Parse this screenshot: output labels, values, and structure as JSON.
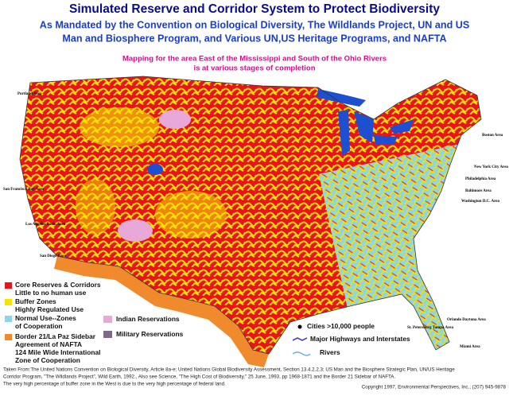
{
  "header": {
    "title": "Simulated Reserve and Corridor System to Protect Biodiversity",
    "subtitle": [
      "As Mandated by the Convention on Biological Diversity, The Wildlands Project, UN and US",
      "Man and Biosphere Program, and Various UN,US Heritage Programs, and NAFTA"
    ],
    "note": [
      "Mapping for the area East of the Mississippi and South of the Ohio Rivers",
      "is at various stages of completion"
    ]
  },
  "legend": [
    {
      "lines": [
        "Core Reserves & Corridors",
        "Little to no human use"
      ]
    },
    {
      "lines": [
        "Buffer Zones",
        "Highly Regulated Use"
      ]
    },
    {
      "lines": [
        "Normal Use--Zones",
        "of Cooperation"
      ]
    },
    {
      "lines": [
        "Border 21/La Paz Sidebar",
        "Agreement of NAFTA",
        "124 Mile Wide International",
        "Zone of Cooperation"
      ]
    },
    {
      "lines": [
        "Indian Reservations"
      ]
    },
    {
      "lines": [
        "Military Reservations"
      ]
    },
    {
      "lines": [
        "Cities >10,000 people"
      ]
    },
    {
      "lines": [
        "Major Highways and Interstates"
      ]
    },
    {
      "lines": [
        "Rivers"
      ]
    }
  ],
  "cities": [
    "Portland Area",
    "San Francisco Bay Area",
    "Los Angeles Basin Area",
    "San Diego Area",
    "Boston Area",
    "New York City Area",
    "Philadelphia Area",
    "Baltimore Area",
    "Washington D.C. Area",
    "Orlando Daytona Area",
    "St. Petersburg Tampa Area",
    "Miami Area"
  ],
  "footer": {
    "lines": [
      "Taken From:The United Nations Convention on Biological Diversity, Article 8a-e; United Nations Global Biodiversity Assessment, Section 13.4.2.2.3; US Man and the Biosphere Strategic Plan, UN/US Heritage",
      "Corridor Program, \"The Wildlands Project\", Wild Earth, 1992., Also see Science, \"The High Cost of Biodiversity,\" 25 June, 1993, pp 1968-1871 and the Border 21 Sidebar of NAFTA.",
      "The very high percentage of buffer zone in the West is due to the very high percentage of federal land."
    ],
    "copyright": "Copyright 1997, Environmental Perspectives, Inc., (207) 945-9878"
  }
}
